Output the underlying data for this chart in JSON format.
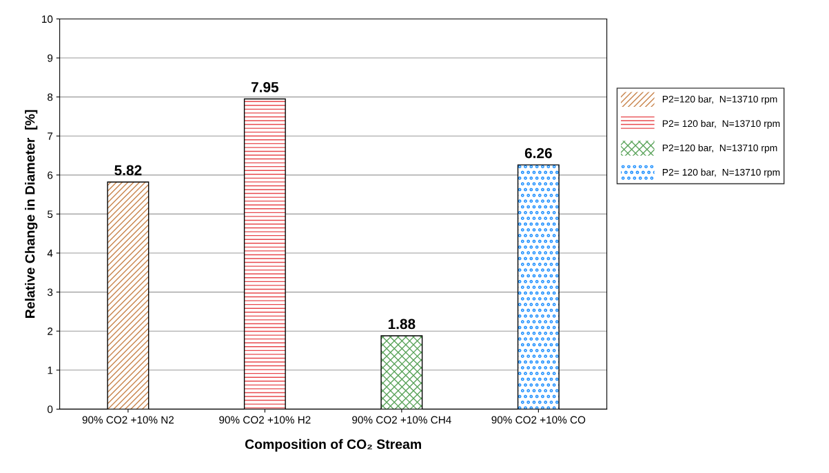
{
  "chart_data": {
    "type": "bar",
    "xlabel": "Composition of CO₂ Stream",
    "ylabel": "Relative Change in Diameter  [%]",
    "categories": [
      "90% CO2 +10% N2",
      "90% CO2 +10% H2",
      "90% CO2 +10% CH4",
      "90% CO2 +10% CO"
    ],
    "series": [
      {
        "name": "P2=120 bar,  N=13710 rpm",
        "color": "#c8834a",
        "values": [
          5.82,
          null,
          null,
          null
        ]
      },
      {
        "name": "P2= 120 bar,  N=13710 rpm",
        "color": "#e8474c",
        "values": [
          null,
          7.95,
          null,
          null
        ]
      },
      {
        "name": "P2=120 bar,  N=13710 rpm",
        "color": "#5aa35a",
        "values": [
          null,
          null,
          1.88,
          null
        ]
      },
      {
        "name": "P2= 120 bar,  N=13710 rpm",
        "color": "#1e90ff",
        "values": [
          null,
          null,
          null,
          6.26
        ]
      }
    ],
    "ylim": [
      0,
      10
    ],
    "yticks": [
      0,
      1,
      2,
      3,
      4,
      5,
      6,
      7,
      8,
      9,
      10
    ],
    "grid": "y",
    "legend": "right",
    "data_labels": true
  }
}
